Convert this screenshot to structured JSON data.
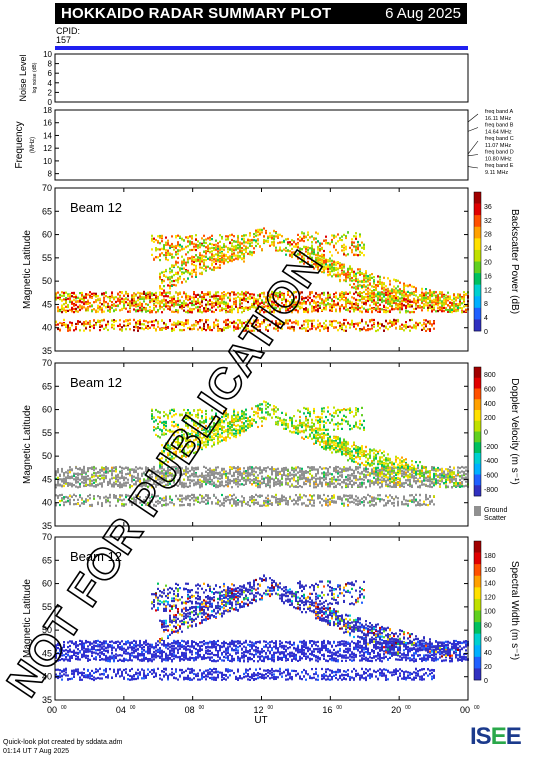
{
  "header": {
    "title": "HOKKAIDO RADAR SUMMARY PLOT",
    "date": "6 Aug 2025",
    "cpid_label": "CPID:",
    "cpid_value": "157"
  },
  "noise_panel": {
    "ylabel": "Noise Level",
    "sublabel": "log noise (dB)",
    "ticks": [
      "0",
      "2",
      "4",
      "6",
      "8",
      "10"
    ]
  },
  "freq_panel": {
    "ylabel": "Frequency",
    "unit": "(MHz)",
    "ticks": [
      "8",
      "10",
      "12",
      "14",
      "16",
      "18"
    ],
    "bands": [
      {
        "name": "freq band A",
        "value": "16.11 MHz"
      },
      {
        "name": "freq band B",
        "value": "14.64 MHz"
      },
      {
        "name": "freq band C",
        "value": "11.07 MHz"
      },
      {
        "name": "freq band D",
        "value": "10.80 MHz"
      },
      {
        "name": "freq band E",
        "value": "9.11 MHz"
      }
    ]
  },
  "lat_ticks": [
    "35",
    "40",
    "45",
    "50",
    "55",
    "60",
    "65",
    "70"
  ],
  "panels": [
    {
      "beam": "Beam 12",
      "ylabel": "Magnetic Latitude",
      "cblabel": "Backscatter Power (dB)",
      "cb_ticks": [
        "0",
        "4",
        "8",
        "12",
        "16",
        "20",
        "24",
        "28",
        "32",
        "36"
      ],
      "cb_colors": [
        "#3030c0",
        "#2060ff",
        "#00b0ff",
        "#00d0d0",
        "#00c060",
        "#60d020",
        "#c0e000",
        "#ffe000",
        "#ffa000",
        "#ff5000",
        "#e00000",
        "#a00000"
      ]
    },
    {
      "beam": "Beam 12",
      "ylabel": "Magnetic Latitude",
      "cblabel": "Doppler Velocity (m s⁻¹)",
      "cb_ticks": [
        "800",
        "600",
        "400",
        "200",
        "0",
        "-200",
        "-400",
        "-600",
        "-800"
      ],
      "cb_colors": [
        "#3030c0",
        "#2060ff",
        "#00b0ff",
        "#00d0d0",
        "#00c060",
        "#60d020",
        "#c0e000",
        "#ffe000",
        "#ffa000",
        "#ff5000",
        "#e00000",
        "#a00000"
      ],
      "ground_label": [
        "Ground",
        "Scatter"
      ]
    },
    {
      "beam": "Beam 12",
      "ylabel": "Magnetic Latitude",
      "cblabel": "Spectral Width (m s⁻¹)",
      "cb_ticks": [
        "0",
        "20",
        "40",
        "60",
        "80",
        "100",
        "120",
        "140",
        "160",
        "180"
      ],
      "cb_colors": [
        "#3030c0",
        "#2060ff",
        "#00b0ff",
        "#00d0d0",
        "#00c060",
        "#60d020",
        "#c0e000",
        "#ffe000",
        "#ffa000",
        "#ff5000",
        "#e00000",
        "#a00000"
      ]
    }
  ],
  "x_ticks": [
    "00",
    "04",
    "08",
    "12",
    "16",
    "20",
    "00"
  ],
  "x_tick_sup": "00",
  "xlabel": "UT",
  "watermark": "NOT FOR PUBLICATION",
  "footer": {
    "line1": "Quick-look plot created by sddata.adm",
    "line2": "01:14 UT  7 Aug 2025"
  },
  "logo": "ISEE",
  "chart_data": {
    "type": "heatmap",
    "x_range_hours_ut": [
      0,
      24
    ],
    "y_range_mlat": [
      35,
      70
    ],
    "noise_range": [
      0,
      10
    ],
    "freq_range_mhz": [
      7,
      18
    ],
    "freq_lines_mhz": [
      16.11,
      14.64,
      11.07,
      10.8,
      9.11
    ],
    "power_range_db": [
      0,
      40
    ],
    "velocity_range_ms": [
      -1000,
      1000
    ],
    "width_range_ms": [
      0,
      200
    ]
  }
}
